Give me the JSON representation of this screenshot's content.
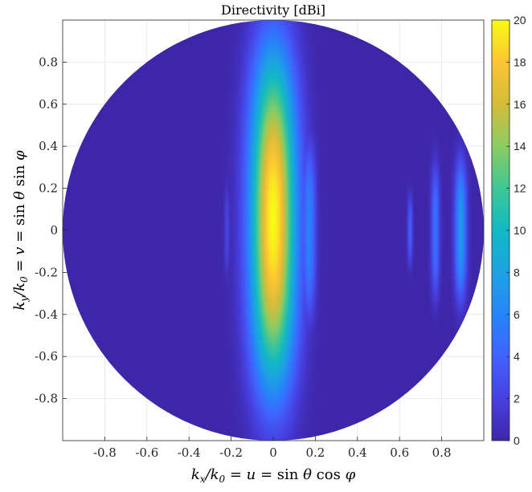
{
  "chart_data": {
    "type": "heatmap",
    "title": "Directivity [dBi]",
    "xlabel": "k_x/k_0 = u = sin θ cos φ",
    "ylabel": "k_y/k_0 = v = sin θ sin φ",
    "xlim": [
      -1,
      1
    ],
    "ylim": [
      -1,
      1
    ],
    "x_ticks": [
      -0.8,
      -0.6,
      -0.4,
      -0.2,
      0,
      0.2,
      0.4,
      0.6,
      0.8
    ],
    "x_tick_labels": [
      "-0.8",
      "-0.6",
      "-0.4",
      "-0.2",
      "0",
      "0.2",
      "0.4",
      "0.6",
      "0.8"
    ],
    "y_ticks": [
      0.8,
      0.6,
      0.4,
      0.2,
      0,
      -0.2,
      -0.4,
      -0.6,
      -0.8
    ],
    "y_tick_labels": [
      "0.8",
      "0.6",
      "0.4",
      "0.2",
      "0",
      "-0.2",
      "-0.4",
      "-0.6",
      "-0.8"
    ],
    "grid": true,
    "domain": "unit circle",
    "colormap": "parula",
    "clim": [
      0,
      20
    ],
    "colorbar_ticks": [
      0,
      2,
      4,
      6,
      8,
      10,
      12,
      14,
      16,
      18,
      20
    ],
    "colorbar_tick_labels": [
      "0",
      "2",
      "4",
      "6",
      "8",
      "10",
      "12",
      "14",
      "16",
      "18",
      "20"
    ],
    "background_level": 0,
    "features": [
      {
        "type": "main-beam",
        "u_center": 0.0,
        "v_center": 0.05,
        "u_half_width": 0.09,
        "v_half_extent": 0.9,
        "peak": 20
      },
      {
        "type": "sidelobe",
        "u_center": 0.17,
        "v_center": 0.0,
        "u_half_width": 0.04,
        "v_half_extent": 0.5,
        "peak": 6
      },
      {
        "type": "sidelobe",
        "u_center": -0.22,
        "v_center": 0.0,
        "u_half_width": 0.015,
        "v_half_extent": 0.25,
        "peak": 2.5
      },
      {
        "type": "grating-lobe",
        "u_center": 0.65,
        "v_center": 0.0,
        "u_half_width": 0.015,
        "v_half_extent": 0.2,
        "peak": 4
      },
      {
        "type": "grating-lobe",
        "u_center": 0.77,
        "v_center": 0.0,
        "u_half_width": 0.025,
        "v_half_extent": 0.38,
        "peak": 5
      },
      {
        "type": "grating-lobe",
        "u_center": 0.89,
        "v_center": 0.0,
        "u_half_width": 0.035,
        "v_half_extent": 0.4,
        "peak": 7.5
      }
    ]
  }
}
